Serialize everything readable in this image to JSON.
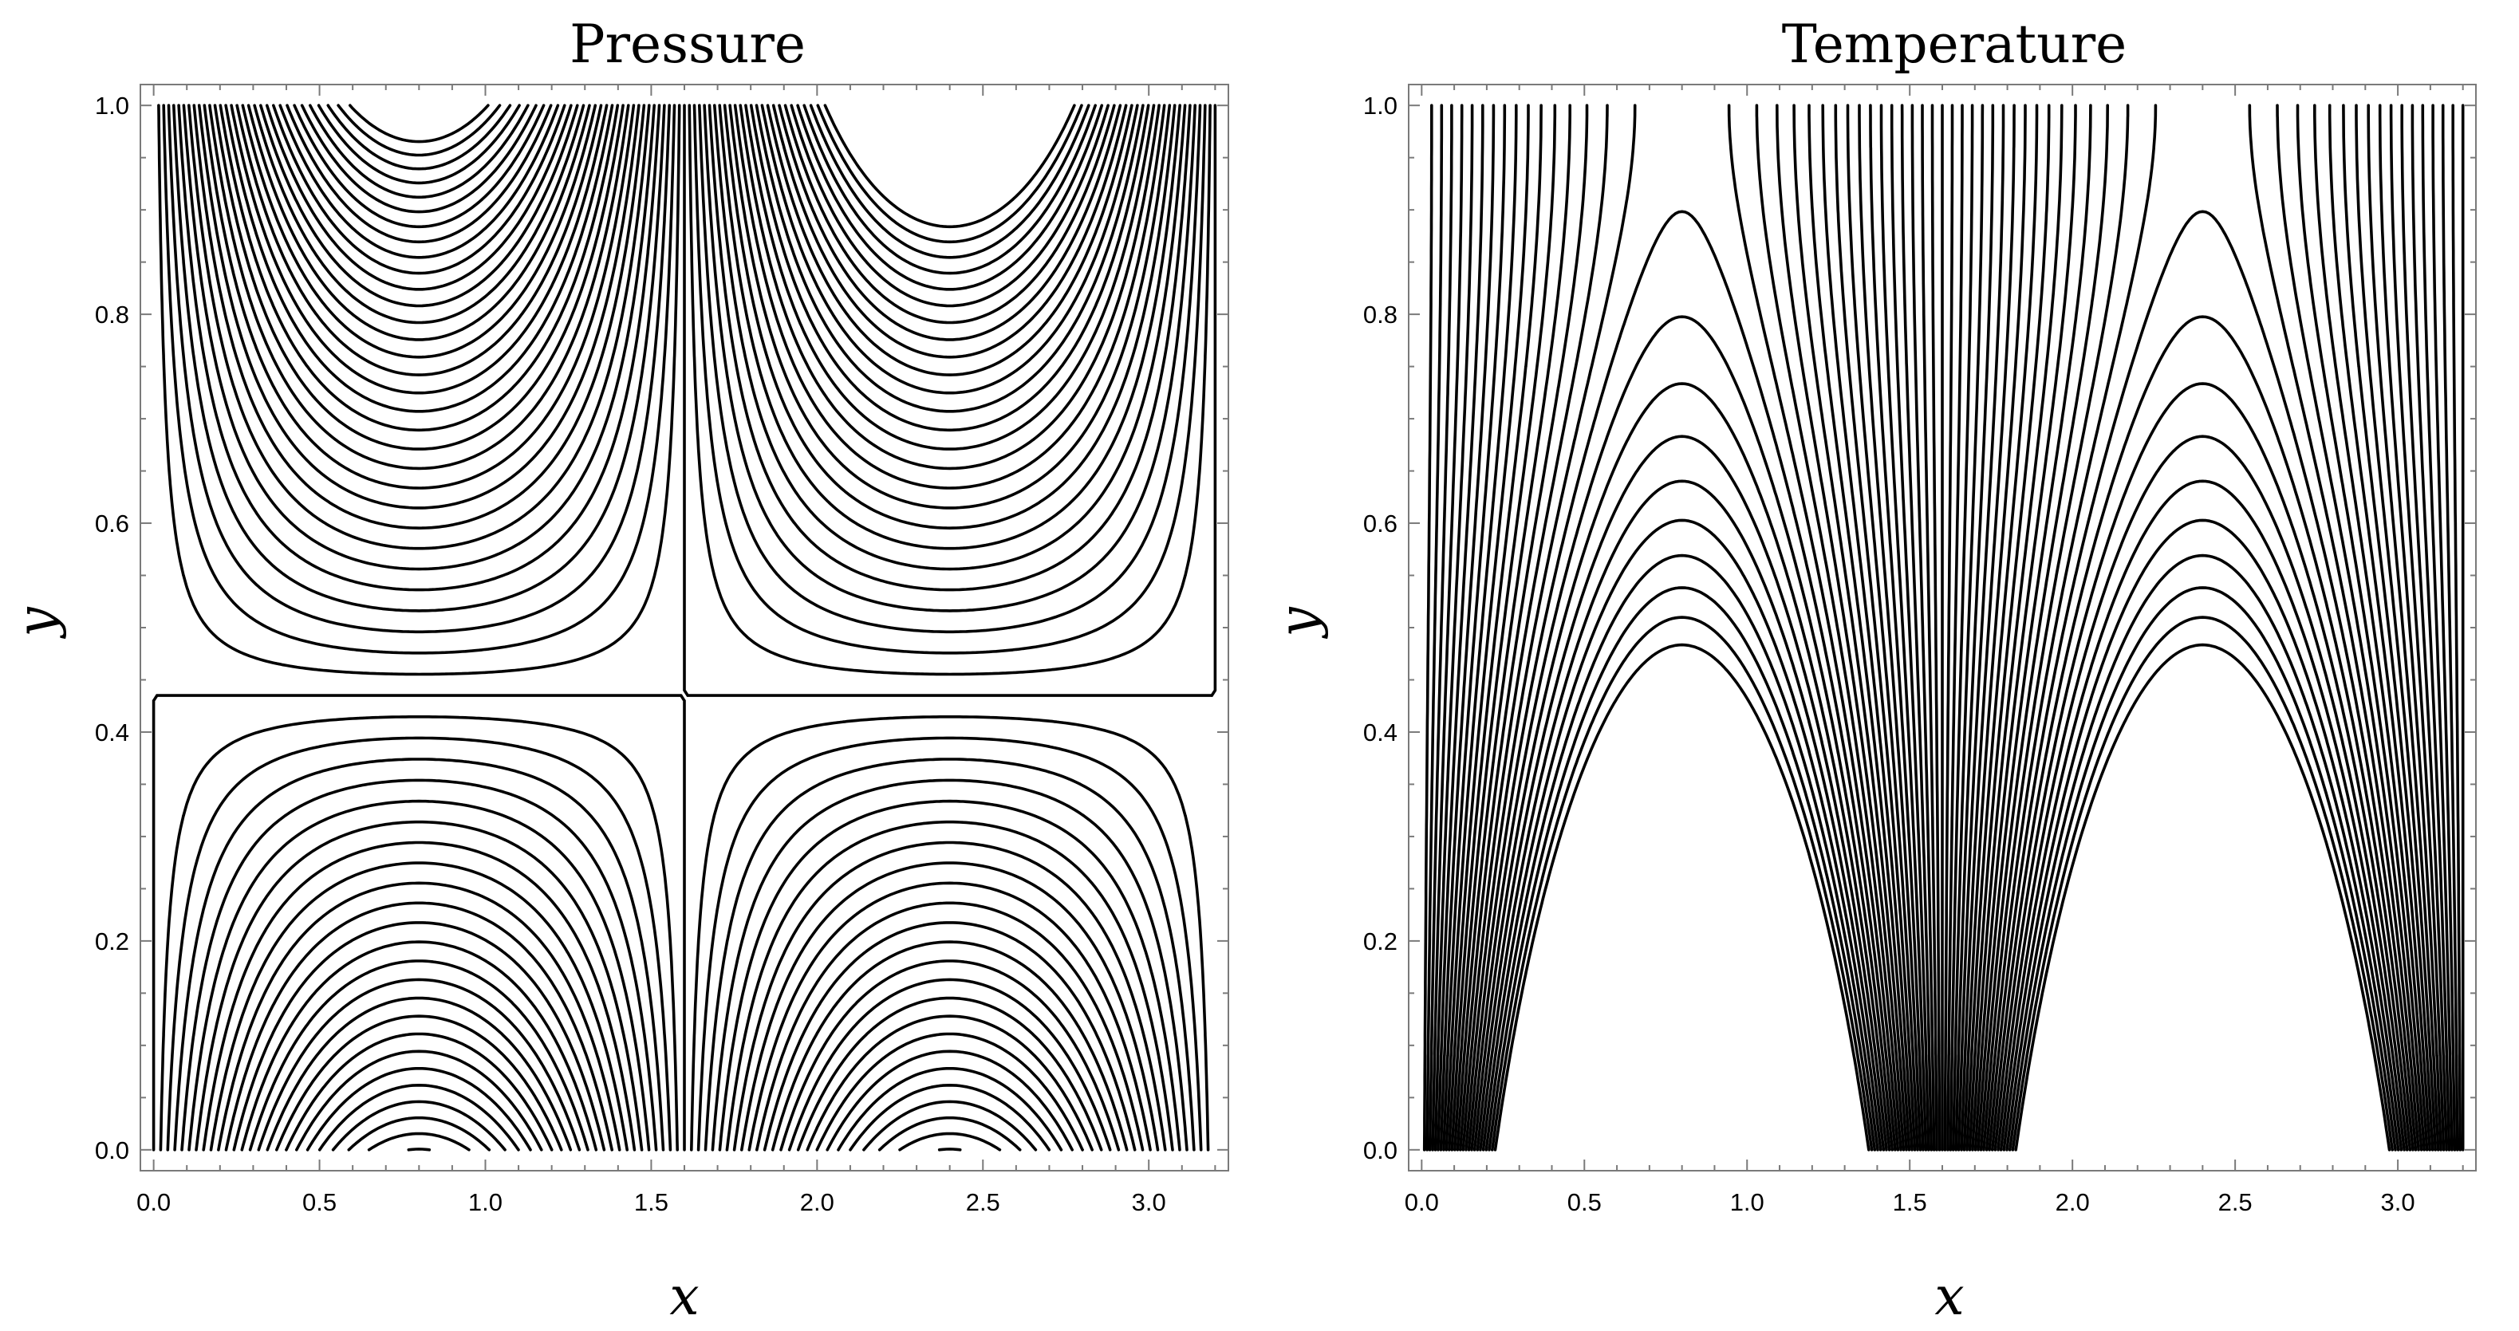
{
  "chart_data": [
    {
      "type": "contour",
      "title": "Pressure",
      "xlabel": "x",
      "ylabel": "y",
      "xlim": [
        -0.04,
        3.24
      ],
      "ylim": [
        -0.02,
        1.02
      ],
      "xticks": [
        0.0,
        0.5,
        1.0,
        1.5,
        2.0,
        2.5,
        3.0
      ],
      "xtick_labels": [
        "0.0",
        "0.5",
        "1.0",
        "1.5",
        "2.0",
        "2.5",
        "3.0"
      ],
      "yticks": [
        0.0,
        0.2,
        0.4,
        0.6,
        0.8,
        1.0
      ],
      "ytick_labels": [
        "0.0",
        "0.2",
        "0.4",
        "0.6",
        "0.8",
        "1.0"
      ],
      "field": {
        "formula": "sin(pi*x/1.6)*sinh(pi*(y-0.435)/1.6)",
        "domain_x": [
          0,
          3.2
        ],
        "domain_y": [
          0,
          1
        ],
        "contour_levels": [
          0,
          0.04,
          0.08,
          0.12,
          0.16,
          0.2,
          0.24,
          0.28,
          0.32,
          0.36,
          0.4,
          0.44,
          0.48,
          0.52,
          0.56,
          0.6,
          0.64,
          0.68,
          0.72,
          0.76,
          0.8,
          0.84,
          0.88,
          0.92,
          0.96,
          1.0,
          1.04,
          1.08,
          1.12,
          1.16,
          1.2,
          1.24,
          -0.04,
          -0.08,
          -0.12,
          -0.16,
          -0.2,
          -0.24,
          -0.28,
          -0.32,
          -0.36,
          -0.4,
          -0.44,
          -0.48,
          -0.52,
          -0.56,
          -0.6,
          -0.64,
          -0.68,
          -0.72,
          -0.76,
          -0.8,
          -0.84,
          -0.88,
          -0.92,
          -0.96,
          -1.0
        ]
      }
    },
    {
      "type": "contour",
      "title": "Temperature",
      "xlabel": "x",
      "ylabel": "y",
      "xlim": [
        -0.04,
        3.24
      ],
      "ylim": [
        -0.02,
        1.02
      ],
      "xticks": [
        0.0,
        0.5,
        1.0,
        1.5,
        2.0,
        2.5,
        3.0
      ],
      "xtick_labels": [
        "0.0",
        "0.5",
        "1.0",
        "1.5",
        "2.0",
        "2.5",
        "3.0"
      ],
      "yticks": [
        0.0,
        0.2,
        0.4,
        0.6,
        0.8,
        1.0
      ],
      "ytick_labels": [
        "0.0",
        "0.2",
        "0.4",
        "0.6",
        "0.8",
        "1.0"
      ],
      "field": {
        "formula": "sin(pi*x/1.6)*cosh(pi*(y-1)/1.6)",
        "domain_x": [
          0,
          3.2
        ],
        "domain_y": [
          0,
          1
        ],
        "contour_levels": [
          0,
          0.06,
          0.12,
          0.18,
          0.24,
          0.3,
          0.36,
          0.42,
          0.48,
          0.54,
          0.6,
          0.66,
          0.72,
          0.78,
          0.84,
          0.9,
          0.96,
          1.02,
          1.08,
          1.14,
          1.2,
          1.26,
          1.32,
          1.38,
          1.44,
          1.5,
          1.56,
          -0.06,
          -0.12,
          -0.18,
          -0.24,
          -0.3,
          -0.36,
          -0.42,
          -0.48,
          -0.54,
          -0.6,
          -0.66,
          -0.72,
          -0.78,
          -0.84,
          -0.9,
          -0.96,
          -1.02,
          -1.08,
          -1.14,
          -1.2,
          -1.26,
          -1.32,
          -1.38,
          -1.44,
          -1.5,
          -1.56
        ]
      }
    }
  ]
}
